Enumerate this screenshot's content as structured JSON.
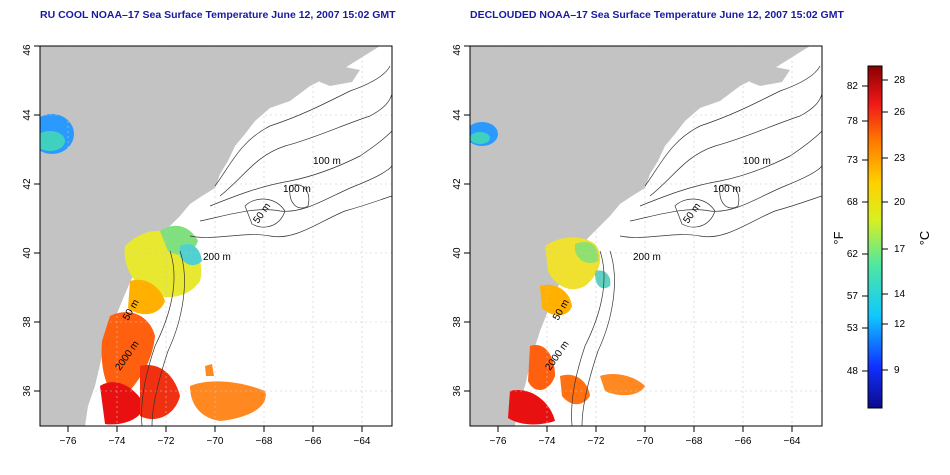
{
  "panels": [
    {
      "id": "left",
      "title": "RU COOL NOAA–17 Sea Surface Temperature June 12, 2007 15:02 GMT",
      "contour_labels": [
        "100 m",
        "100 m",
        "50 m",
        "200 m",
        "50 m",
        "2000 m"
      ]
    },
    {
      "id": "right",
      "title": "DECLOUDED NOAA–17 Sea Surface Temperature June 12, 2007 15:02 GMT",
      "contour_labels": [
        "100 m",
        "100 m",
        "50 m",
        "200 m",
        "50 m",
        "2000 m"
      ]
    }
  ],
  "axes": {
    "x_ticks": [
      "−76",
      "−74",
      "−72",
      "−70",
      "−68",
      "−66",
      "−64"
    ],
    "y_ticks": [
      "36",
      "38",
      "40",
      "42",
      "44",
      "46"
    ]
  },
  "colorbar": {
    "f_label": "°F",
    "c_label": "°C",
    "f_ticks": [
      "82",
      "78",
      "73",
      "68",
      "62",
      "57",
      "53",
      "48"
    ],
    "c_ticks": [
      "28",
      "26",
      "23",
      "20",
      "17",
      "14",
      "12",
      "9"
    ]
  },
  "colors": {
    "land": "#c3c3c3",
    "title": "#1a1aa0"
  }
}
